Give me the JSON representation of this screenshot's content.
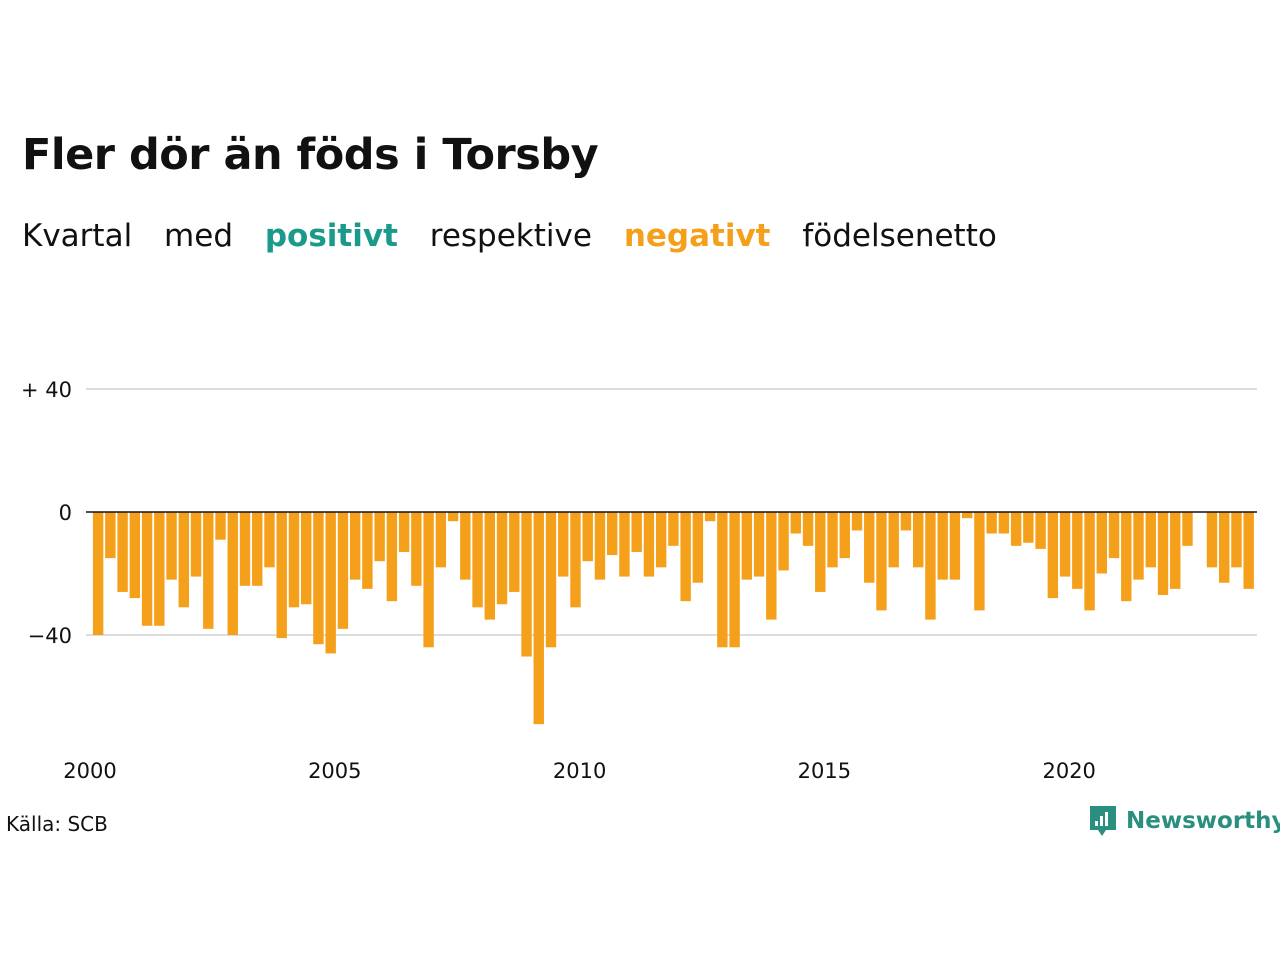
{
  "title": "Fler dör än föds i Torsby",
  "subtitle": {
    "w1": "Kvartal",
    "w2": "med",
    "positive": "positivt",
    "w3": "respektive",
    "negative": "negativt",
    "w4": "födelsenetto"
  },
  "source": "Källa: SCB",
  "brand": "Newsworthy",
  "colors": {
    "negative": "#f5a01a",
    "positive": "#1a9a8a",
    "grid": "#dddddd",
    "axis": "#111111"
  },
  "chart_data": {
    "type": "bar",
    "title": "Fler dör än föds i Torsby",
    "xlabel": "",
    "ylabel": "",
    "grid": true,
    "x_start": 2000,
    "quarters_per_year": 4,
    "x_ticks": [
      "2000",
      "2005",
      "2010",
      "2015",
      "2020"
    ],
    "y_ticks": [
      {
        "value": 40,
        "label": "+ 40"
      },
      {
        "value": 0,
        "label": "0"
      },
      {
        "value": -40,
        "label": "−40"
      }
    ],
    "ylim": [
      -70,
      40
    ],
    "values": [
      -40,
      -15,
      -26,
      -28,
      -37,
      -37,
      -22,
      -31,
      -21,
      -38,
      -9,
      -40,
      -24,
      -24,
      -18,
      -41,
      -31,
      -30,
      -43,
      -46,
      -38,
      -22,
      -25,
      -16,
      -29,
      -13,
      -24,
      -44,
      -18,
      -3,
      -22,
      -31,
      -35,
      -30,
      -26,
      -47,
      -69,
      -44,
      -21,
      -31,
      -16,
      -22,
      -14,
      -21,
      -13,
      -21,
      -18,
      -11,
      -29,
      -23,
      -3,
      -44,
      -44,
      -22,
      -21,
      -35,
      -19,
      -7,
      -11,
      -26,
      -18,
      -15,
      -6,
      -23,
      -32,
      -18,
      -6,
      -18,
      -35,
      -22,
      -22,
      -2,
      -32,
      -7,
      -7,
      -11,
      -10,
      -12,
      -28,
      -21,
      -25,
      -32,
      -20,
      -15,
      -29,
      -22,
      -18,
      -27,
      -25,
      -11,
      0,
      -18,
      -23,
      -18,
      -25
    ]
  }
}
